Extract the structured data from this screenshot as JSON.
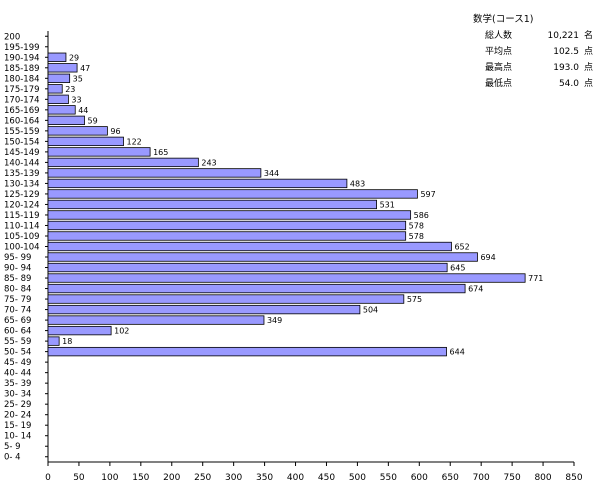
{
  "summary": {
    "title": "数学(コース1)",
    "rows": [
      {
        "label": "総人数",
        "value": "10,221",
        "unit": "名"
      },
      {
        "label": "平均点",
        "value": "102.5",
        "unit": "点"
      },
      {
        "label": "最高点",
        "value": "193.0",
        "unit": "点"
      },
      {
        "label": "最低点",
        "value": "54.0",
        "unit": "点"
      }
    ]
  },
  "chart_data": {
    "type": "bar",
    "orientation": "horizontal",
    "bar_color": "#9999ff",
    "categories": [
      "200",
      "195-199",
      "190-194",
      "185-189",
      "180-184",
      "175-179",
      "170-174",
      "165-169",
      "160-164",
      "155-159",
      "150-154",
      "145-149",
      "140-144",
      "135-139",
      "130-134",
      "125-129",
      "120-124",
      "115-119",
      "110-114",
      "105-109",
      "100-104",
      "95- 99",
      "90- 94",
      "85- 89",
      "80- 84",
      "75- 79",
      "70- 74",
      "65- 69",
      "60- 64",
      "55- 59",
      "50- 54",
      "45- 49",
      "40- 44",
      "35- 39",
      "30- 34",
      "25- 29",
      "20- 24",
      "15- 19",
      "10- 14",
      "5- 9",
      "0- 4"
    ],
    "values": [
      null,
      null,
      29,
      47,
      35,
      23,
      33,
      44,
      59,
      96,
      122,
      165,
      243,
      344,
      483,
      597,
      531,
      586,
      578,
      578,
      652,
      694,
      645,
      771,
      674,
      575,
      504,
      349,
      102,
      18,
      644,
      null,
      null,
      null,
      null,
      null,
      null,
      null,
      null,
      null,
      null
    ],
    "xlim": [
      0,
      850
    ],
    "xticks": [
      0,
      50,
      100,
      150,
      200,
      250,
      300,
      350,
      400,
      450,
      500,
      550,
      600,
      650,
      700,
      750,
      800,
      850
    ],
    "grid": false
  }
}
